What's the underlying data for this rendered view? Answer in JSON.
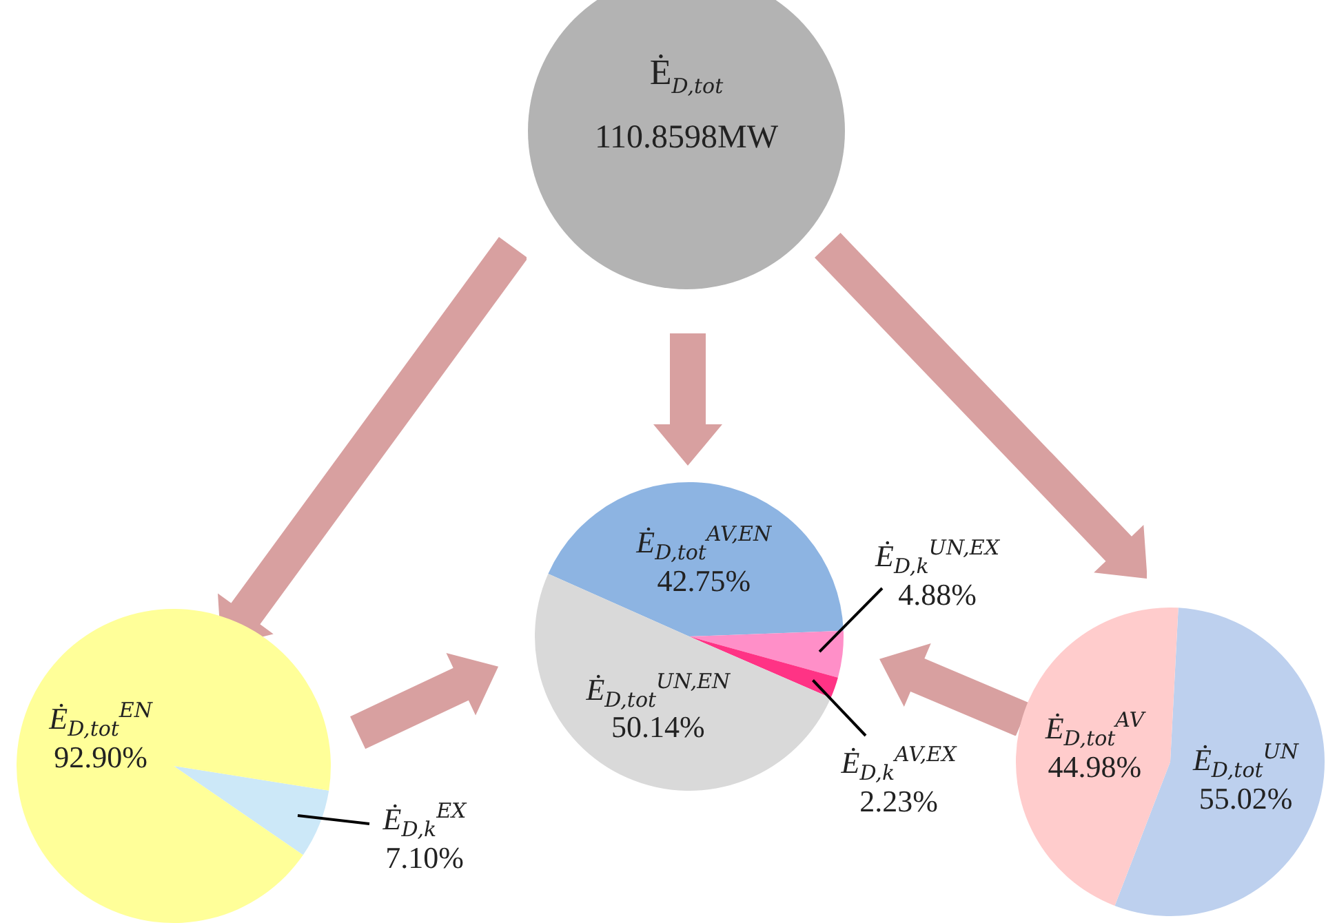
{
  "chart_data": [
    {
      "type": "other",
      "title": "Ė$_{D,tot}$",
      "annotations": [
        "110.8598MW"
      ]
    },
    {
      "type": "pie",
      "categories": [
        "Ė$_{D,k}$$^{EX}$",
        "Ė$_{D,tot}$$^{EN}$"
      ],
      "values": [
        7.1,
        92.9
      ],
      "colors": [
        "#cce8f8",
        "#ffff99"
      ],
      "value_labels": [
        "7.10%",
        "92.90%"
      ]
    },
    {
      "type": "pie",
      "categories": [
        "Ė$_{D,tot}$$^{AV,EN}$",
        "Ė$_{D,k}$$^{UN,EX}$",
        "Ė$_{D,k}$$^{AV,EX}$",
        "Ė$_{D,tot}$$^{UN,EN}$"
      ],
      "values": [
        42.75,
        4.88,
        2.23,
        50.14
      ],
      "colors": [
        "#8db4e2",
        "#ff8fc8",
        "#ff3385",
        "#d9d9d9"
      ],
      "value_labels": [
        "42.75%",
        "4.88%",
        "2.23%",
        "50.14%"
      ]
    },
    {
      "type": "pie",
      "categories": [
        "Ė$_{D,tot}$$^{UN}$",
        "Ė$_{D,tot}$$^{AV}$"
      ],
      "values": [
        55.02,
        44.98
      ],
      "colors": [
        "#bdd0ee",
        "#ffcccc"
      ],
      "value_labels": [
        "55.02%",
        "44.98%"
      ]
    }
  ]
}
